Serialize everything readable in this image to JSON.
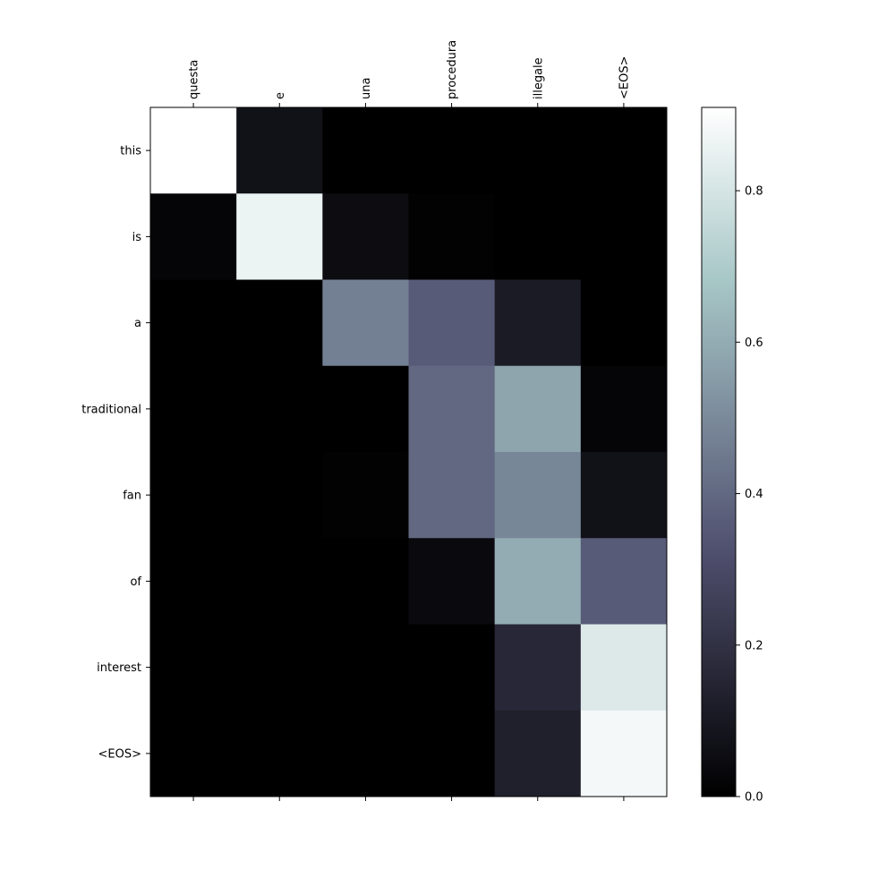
{
  "chart_data": {
    "type": "heatmap",
    "colormap": "bone",
    "x_tick_labels": [
      "questa",
      "e",
      "una",
      "procedura",
      "illegale",
      "<EOS>"
    ],
    "y_tick_labels": [
      "this",
      "is",
      "a",
      "traditional",
      "fan",
      "of",
      "interest",
      "<EOS>"
    ],
    "values": [
      [
        0.91,
        0.07,
        0.0,
        0.0,
        0.0,
        0.0
      ],
      [
        0.02,
        0.86,
        0.05,
        0.01,
        0.0,
        0.0
      ],
      [
        0.0,
        0.0,
        0.47,
        0.36,
        0.11,
        0.0
      ],
      [
        0.0,
        0.0,
        0.0,
        0.4,
        0.58,
        0.02
      ],
      [
        0.0,
        0.0,
        0.01,
        0.4,
        0.49,
        0.07
      ],
      [
        0.0,
        0.0,
        0.0,
        0.04,
        0.6,
        0.36
      ],
      [
        0.0,
        0.0,
        0.0,
        0.0,
        0.16,
        0.82
      ],
      [
        0.0,
        0.0,
        0.0,
        0.0,
        0.13,
        0.88
      ]
    ],
    "colorbar": {
      "vmin": 0.0,
      "vmax": 0.91,
      "ticks": [
        0.0,
        0.2,
        0.4,
        0.6,
        0.8
      ],
      "tick_labels": [
        "0.0",
        "0.2",
        "0.4",
        "0.6",
        "0.8"
      ]
    }
  }
}
